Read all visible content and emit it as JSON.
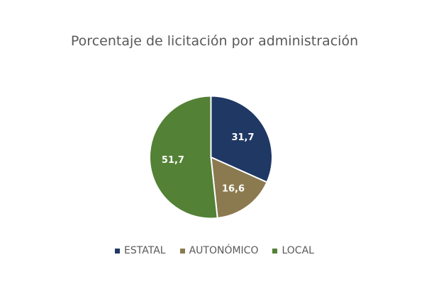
{
  "chart_data": {
    "type": "pie",
    "title": "Porcentaje de licitación por administración",
    "categories": [
      "ESTATAL",
      "AUTONÓMICO",
      "LOCAL"
    ],
    "values": [
      31.7,
      16.6,
      51.7
    ],
    "value_labels": [
      "31,7",
      "16,6",
      "51,7"
    ],
    "colors": [
      "#1f3864",
      "#8b7a4f",
      "#538135"
    ],
    "legend_position": "bottom",
    "start_angle_deg": 0,
    "direction": "clockwise"
  },
  "legend": {
    "items": [
      {
        "label": "ESTATAL",
        "color": "#1f3864"
      },
      {
        "label": "AUTONÓMICO",
        "color": "#8b7a4f"
      },
      {
        "label": "LOCAL",
        "color": "#538135"
      }
    ]
  }
}
